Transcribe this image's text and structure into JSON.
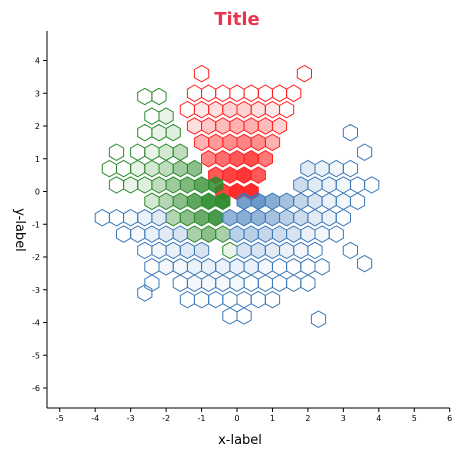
{
  "chart_data": {
    "type": "hexbin",
    "title": "Title",
    "xlabel": "x-label",
    "ylabel": "y-label",
    "xlim": [
      -5.5,
      6
    ],
    "ylim": [
      -6.6,
      4.9
    ],
    "x_ticks": [
      -5,
      -4,
      -3,
      -2,
      -1,
      0,
      1,
      2,
      3,
      4,
      5,
      6
    ],
    "y_ticks": [
      4,
      3,
      2,
      1,
      0,
      -1,
      -2,
      -3,
      -4,
      -5,
      -6
    ],
    "hex_size_x": 0.2,
    "colors": {
      "red": "#ff2020",
      "green": "#2a8a2a",
      "blue": "#3a78b8",
      "title": "#e8344e"
    },
    "series": [
      {
        "color": "red",
        "center": [
          0.2,
          1.0
        ],
        "hexes": [
          [
            -1.0,
            3.6,
            0
          ],
          [
            1.9,
            3.6,
            0
          ],
          [
            -1.2,
            3.0,
            0
          ],
          [
            -0.8,
            3.0,
            0
          ],
          [
            -0.4,
            3.0,
            0
          ],
          [
            0.0,
            3.0,
            0
          ],
          [
            0.4,
            3.0,
            0
          ],
          [
            0.8,
            3.0,
            0
          ],
          [
            1.2,
            3.0,
            0
          ],
          [
            1.6,
            3.0,
            0
          ],
          [
            -1.4,
            2.5,
            0
          ],
          [
            -1.0,
            2.5,
            0.1
          ],
          [
            -0.6,
            2.5,
            0.15
          ],
          [
            -0.2,
            2.5,
            0.2
          ],
          [
            0.2,
            2.5,
            0.2
          ],
          [
            0.6,
            2.5,
            0.15
          ],
          [
            1.0,
            2.5,
            0.1
          ],
          [
            1.4,
            2.5,
            0
          ],
          [
            -1.2,
            2.0,
            0.15
          ],
          [
            -0.8,
            2.0,
            0.25
          ],
          [
            -0.4,
            2.0,
            0.3
          ],
          [
            0.0,
            2.0,
            0.35
          ],
          [
            0.4,
            2.0,
            0.35
          ],
          [
            0.8,
            2.0,
            0.3
          ],
          [
            1.2,
            2.0,
            0.2
          ],
          [
            -1.0,
            1.5,
            0.35
          ],
          [
            -0.6,
            1.5,
            0.45
          ],
          [
            -0.2,
            1.5,
            0.5
          ],
          [
            0.2,
            1.5,
            0.55
          ],
          [
            0.6,
            1.5,
            0.5
          ],
          [
            1.0,
            1.5,
            0.35
          ],
          [
            -0.8,
            1.0,
            0.55
          ],
          [
            -0.4,
            1.0,
            0.65
          ],
          [
            0.0,
            1.0,
            0.75
          ],
          [
            0.4,
            1.0,
            0.8
          ],
          [
            0.8,
            1.0,
            0.6
          ],
          [
            -0.6,
            0.5,
            0.75
          ],
          [
            -0.2,
            0.5,
            0.85
          ],
          [
            0.2,
            0.5,
            0.9
          ],
          [
            0.6,
            0.5,
            0.75
          ],
          [
            -0.4,
            0.0,
            0.85
          ],
          [
            0.0,
            0.0,
            0.95
          ],
          [
            0.4,
            0.0,
            0.95
          ]
        ]
      },
      {
        "color": "green",
        "center": [
          -1.0,
          -0.3
        ],
        "hexes": [
          [
            -2.6,
            2.9,
            0
          ],
          [
            -2.2,
            2.9,
            0
          ],
          [
            -2.4,
            2.3,
            0
          ],
          [
            -2.0,
            2.3,
            0.1
          ],
          [
            -2.6,
            1.8,
            0
          ],
          [
            -2.2,
            1.8,
            0.1
          ],
          [
            -1.8,
            1.8,
            0.15
          ],
          [
            -3.4,
            1.2,
            0
          ],
          [
            -2.8,
            1.2,
            0
          ],
          [
            -2.4,
            1.2,
            0.1
          ],
          [
            -2.0,
            1.2,
            0.2
          ],
          [
            -1.6,
            1.2,
            0.3
          ],
          [
            -3.6,
            0.7,
            0
          ],
          [
            -3.2,
            0.7,
            0
          ],
          [
            -2.8,
            0.7,
            0.1
          ],
          [
            -2.4,
            0.7,
            0.2
          ],
          [
            -2.0,
            0.7,
            0.3
          ],
          [
            -1.6,
            0.7,
            0.45
          ],
          [
            -1.2,
            0.7,
            0.55
          ],
          [
            -3.4,
            0.2,
            0
          ],
          [
            -3.0,
            0.2,
            0.1
          ],
          [
            -2.6,
            0.2,
            0.15
          ],
          [
            -2.2,
            0.2,
            0.3
          ],
          [
            -1.8,
            0.2,
            0.45
          ],
          [
            -1.4,
            0.2,
            0.6
          ],
          [
            -1.0,
            0.2,
            0.75
          ],
          [
            -0.6,
            0.2,
            0.85
          ],
          [
            -2.4,
            -0.3,
            0.2
          ],
          [
            -2.0,
            -0.3,
            0.35
          ],
          [
            -1.6,
            -0.3,
            0.55
          ],
          [
            -1.2,
            -0.3,
            0.75
          ],
          [
            -0.8,
            -0.3,
            0.9
          ],
          [
            -0.4,
            -0.3,
            0.95
          ],
          [
            -1.8,
            -0.8,
            0.35
          ],
          [
            -1.4,
            -0.8,
            0.55
          ],
          [
            -1.0,
            -0.8,
            0.7
          ],
          [
            -0.6,
            -0.8,
            0.85
          ],
          [
            -1.2,
            -1.3,
            0.4
          ],
          [
            -0.8,
            -1.3,
            0.55
          ],
          [
            -0.4,
            -1.3,
            0.4
          ],
          [
            -0.2,
            -1.8,
            0.1
          ]
        ]
      },
      {
        "color": "blue",
        "center": [
          1.0,
          -0.5
        ],
        "hexes": [
          [
            3.6,
            1.2,
            0
          ],
          [
            3.2,
            1.8,
            0
          ],
          [
            2.0,
            0.7,
            0.15
          ],
          [
            2.4,
            0.7,
            0.1
          ],
          [
            2.8,
            0.7,
            0.05
          ],
          [
            3.2,
            0.7,
            0
          ],
          [
            1.8,
            0.2,
            0.25
          ],
          [
            2.2,
            0.2,
            0.15
          ],
          [
            2.6,
            0.2,
            0.1
          ],
          [
            3.0,
            0.2,
            0.05
          ],
          [
            3.4,
            0.2,
            0
          ],
          [
            3.8,
            0.2,
            0
          ],
          [
            0.2,
            -0.3,
            0.7
          ],
          [
            0.6,
            -0.3,
            0.75
          ],
          [
            1.0,
            -0.3,
            0.6
          ],
          [
            1.4,
            -0.3,
            0.45
          ],
          [
            1.8,
            -0.3,
            0.3
          ],
          [
            2.2,
            -0.3,
            0.2
          ],
          [
            2.6,
            -0.3,
            0.1
          ],
          [
            3.0,
            -0.3,
            0.05
          ],
          [
            3.4,
            -0.3,
            0
          ],
          [
            -3.8,
            -0.8,
            0
          ],
          [
            -3.4,
            -0.8,
            0
          ],
          [
            -3.0,
            -0.8,
            0.05
          ],
          [
            -2.6,
            -0.8,
            0.1
          ],
          [
            -2.2,
            -0.8,
            0.15
          ],
          [
            -0.2,
            -0.8,
            0.55
          ],
          [
            0.2,
            -0.8,
            0.6
          ],
          [
            0.6,
            -0.8,
            0.55
          ],
          [
            1.0,
            -0.8,
            0.45
          ],
          [
            1.4,
            -0.8,
            0.35
          ],
          [
            1.8,
            -0.8,
            0.25
          ],
          [
            2.2,
            -0.8,
            0.15
          ],
          [
            2.6,
            -0.8,
            0.1
          ],
          [
            3.0,
            -0.8,
            0
          ],
          [
            -3.2,
            -1.3,
            0
          ],
          [
            -2.8,
            -1.3,
            0.05
          ],
          [
            -2.4,
            -1.3,
            0.1
          ],
          [
            -2.0,
            -1.3,
            0.15
          ],
          [
            -1.6,
            -1.3,
            0.2
          ],
          [
            0.0,
            -1.3,
            0.35
          ],
          [
            0.4,
            -1.3,
            0.35
          ],
          [
            0.8,
            -1.3,
            0.3
          ],
          [
            1.2,
            -1.3,
            0.25
          ],
          [
            1.6,
            -1.3,
            0.2
          ],
          [
            2.0,
            -1.3,
            0.1
          ],
          [
            2.4,
            -1.3,
            0.05
          ],
          [
            2.8,
            -1.3,
            0
          ],
          [
            -2.6,
            -1.8,
            0
          ],
          [
            -2.2,
            -1.8,
            0.05
          ],
          [
            -1.8,
            -1.8,
            0.1
          ],
          [
            -1.4,
            -1.8,
            0.15
          ],
          [
            -1.0,
            -1.8,
            0.2
          ],
          [
            0.2,
            -1.8,
            0.2
          ],
          [
            0.6,
            -1.8,
            0.2
          ],
          [
            1.0,
            -1.8,
            0.15
          ],
          [
            1.4,
            -1.8,
            0.1
          ],
          [
            1.8,
            -1.8,
            0.05
          ],
          [
            2.2,
            -1.8,
            0
          ],
          [
            3.2,
            -1.8,
            0
          ],
          [
            -2.4,
            -2.3,
            0
          ],
          [
            -2.0,
            -2.3,
            0.05
          ],
          [
            -1.6,
            -2.3,
            0.05
          ],
          [
            -1.2,
            -2.3,
            0.1
          ],
          [
            -0.8,
            -2.3,
            0.1
          ],
          [
            -0.4,
            -2.3,
            0.1
          ],
          [
            0.0,
            -2.3,
            0.1
          ],
          [
            0.4,
            -2.3,
            0.1
          ],
          [
            0.8,
            -2.3,
            0.05
          ],
          [
            1.2,
            -2.3,
            0
          ],
          [
            1.6,
            -2.3,
            0
          ],
          [
            2.0,
            -2.3,
            0
          ],
          [
            2.4,
            -2.3,
            0
          ],
          [
            3.6,
            -2.2,
            0
          ],
          [
            -2.4,
            -2.8,
            0
          ],
          [
            -1.6,
            -2.8,
            0
          ],
          [
            -1.2,
            -2.8,
            0.05
          ],
          [
            -0.8,
            -2.8,
            0.05
          ],
          [
            -0.4,
            -2.8,
            0.05
          ],
          [
            0.0,
            -2.8,
            0.05
          ],
          [
            0.4,
            -2.8,
            0
          ],
          [
            0.8,
            -2.8,
            0
          ],
          [
            1.2,
            -2.8,
            0
          ],
          [
            1.6,
            -2.8,
            0
          ],
          [
            2.0,
            -2.8,
            0
          ],
          [
            -2.6,
            -3.1,
            0
          ],
          [
            -1.4,
            -3.3,
            0
          ],
          [
            -1.0,
            -3.3,
            0
          ],
          [
            -0.6,
            -3.3,
            0
          ],
          [
            -0.2,
            -3.3,
            0
          ],
          [
            0.2,
            -3.3,
            0
          ],
          [
            0.6,
            -3.3,
            0
          ],
          [
            1.0,
            -3.3,
            0
          ],
          [
            -0.2,
            -3.8,
            0
          ],
          [
            0.2,
            -3.8,
            0
          ],
          [
            2.3,
            -3.9,
            0
          ]
        ]
      }
    ]
  }
}
